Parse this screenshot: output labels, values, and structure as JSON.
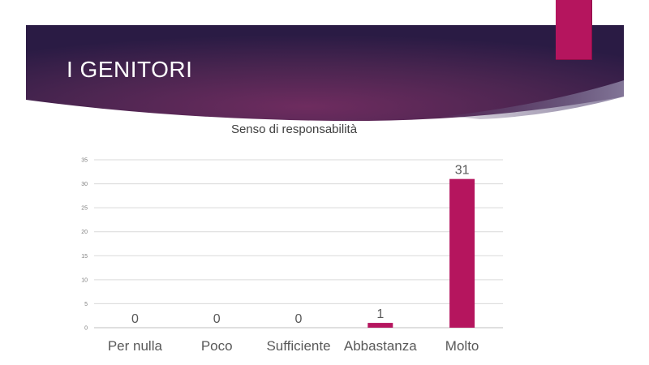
{
  "slide": {
    "title": "I GENITORI"
  },
  "colors": {
    "accent": "#b5155e",
    "banner_dark": "#2a1b44",
    "banner_mid": "#6b2b5e",
    "gridline": "#d9d9d9"
  },
  "chart_data": {
    "type": "bar",
    "title": "Senso di responsabilità",
    "categories": [
      "Per nulla",
      "Poco",
      "Sufficiente",
      "Abbastanza",
      "Molto"
    ],
    "values": [
      0,
      0,
      0,
      1,
      31
    ],
    "data_labels": [
      "0",
      "0",
      "0",
      "1",
      "31"
    ],
    "ylim": [
      0,
      35
    ],
    "y_ticks": [
      0,
      5,
      10,
      15,
      20,
      25,
      30,
      35
    ],
    "grid": true,
    "legend": "none",
    "xlabel": "",
    "ylabel": "",
    "bar_color": "#b5155e"
  }
}
